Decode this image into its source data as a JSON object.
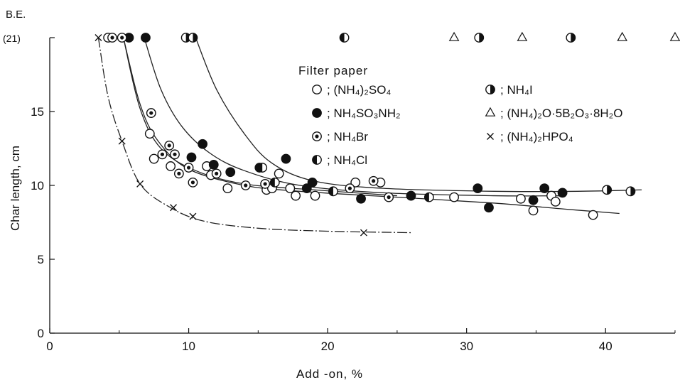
{
  "chart_data": {
    "type": "scatter",
    "xlabel": "Add -on,  %",
    "ylabel": "Char length, cm",
    "xlim": [
      0,
      45
    ],
    "ylim": [
      0,
      20
    ],
    "x_ticks": [
      0,
      10,
      20,
      30,
      40
    ],
    "y_ticks": [
      0,
      5,
      10,
      15
    ],
    "top_label_1": "B.E.",
    "top_label_2": "(21)",
    "top_value": 20,
    "grid": false,
    "legend": {
      "title": "Filter paper",
      "position": "top-right (inside plot)"
    },
    "series": [
      {
        "name": "(NH₄)₂SO₄",
        "marker": "open-circle",
        "points": [
          [
            4.2,
            20
          ],
          [
            7.2,
            13.5
          ],
          [
            7.5,
            11.8
          ],
          [
            8.7,
            11.3
          ],
          [
            11.3,
            11.3
          ],
          [
            11.6,
            10.7
          ],
          [
            12.8,
            9.8
          ],
          [
            15.6,
            9.7
          ],
          [
            16.0,
            9.8
          ],
          [
            16.5,
            10.8
          ],
          [
            17.3,
            9.8
          ],
          [
            17.7,
            9.3
          ],
          [
            19.1,
            9.3
          ],
          [
            22.0,
            10.2
          ],
          [
            23.8,
            10.2
          ],
          [
            29.1,
            9.2
          ],
          [
            33.9,
            9.1
          ],
          [
            34.8,
            8.3
          ],
          [
            36.1,
            9.3
          ],
          [
            36.4,
            8.9
          ],
          [
            39.1,
            8.0
          ]
        ],
        "curve": [
          [
            5.3,
            20
          ],
          [
            6.5,
            15.5
          ],
          [
            7.8,
            13.0
          ],
          [
            10,
            11.1
          ],
          [
            14,
            10.0
          ],
          [
            18,
            9.6
          ],
          [
            25,
            9.2
          ],
          [
            32,
            8.8
          ],
          [
            37,
            8.4
          ],
          [
            41,
            8.1
          ]
        ]
      },
      {
        "name": "NH₄SO₃NH₂",
        "marker": "filled-circle",
        "points": [
          [
            5.7,
            20
          ],
          [
            6.9,
            20
          ],
          [
            10.2,
            11.9
          ],
          [
            11.0,
            12.8
          ],
          [
            11.8,
            11.4
          ],
          [
            13.0,
            10.9
          ],
          [
            15.1,
            11.2
          ],
          [
            17.0,
            11.8
          ],
          [
            18.5,
            9.8
          ],
          [
            18.9,
            10.2
          ],
          [
            22.4,
            9.1
          ],
          [
            26.0,
            9.3
          ],
          [
            30.8,
            9.8
          ],
          [
            31.6,
            8.5
          ],
          [
            34.8,
            9.0
          ],
          [
            35.6,
            9.8
          ],
          [
            36.9,
            9.5
          ]
        ],
        "curve": [
          [
            6.8,
            20
          ],
          [
            8.0,
            16.5
          ],
          [
            9.5,
            14.0
          ],
          [
            11.5,
            12.2
          ],
          [
            14,
            11.0
          ],
          [
            18,
            10.0
          ],
          [
            24,
            9.5
          ],
          [
            32,
            9.3
          ],
          [
            37,
            9.3
          ]
        ]
      },
      {
        "name": "NH₄Br",
        "marker": "dotted-circle",
        "points": [
          [
            4.5,
            20
          ],
          [
            5.2,
            20
          ],
          [
            7.3,
            14.9
          ],
          [
            8.1,
            12.1
          ],
          [
            8.6,
            12.7
          ],
          [
            9.0,
            12.1
          ],
          [
            9.3,
            10.8
          ],
          [
            10.0,
            11.2
          ],
          [
            10.3,
            10.2
          ],
          [
            12.0,
            10.8
          ],
          [
            14.1,
            10.0
          ],
          [
            15.5,
            10.1
          ],
          [
            21.6,
            9.8
          ],
          [
            23.3,
            10.3
          ],
          [
            24.4,
            9.2
          ]
        ],
        "curve": [
          [
            5.3,
            20
          ],
          [
            6.5,
            15.2
          ],
          [
            8,
            12.5
          ],
          [
            10.5,
            11.0
          ],
          [
            14,
            10.1
          ],
          [
            19,
            9.7
          ],
          [
            25,
            9.3
          ]
        ]
      },
      {
        "name": "NH₄Cl",
        "marker": "left-half-circle",
        "points": [
          [
            21.2,
            20
          ],
          [
            15.3,
            11.2
          ],
          [
            16.2,
            10.2
          ],
          [
            20.4,
            9.6
          ],
          [
            27.3,
            9.2
          ]
        ],
        "curve": []
      },
      {
        "name": "NH₄I",
        "marker": "right-half-circle",
        "points": [
          [
            9.8,
            20
          ],
          [
            10.3,
            20
          ],
          [
            30.9,
            20
          ],
          [
            37.5,
            20
          ],
          [
            40.1,
            9.7
          ],
          [
            41.8,
            9.6
          ]
        ],
        "curve": [
          [
            10.5,
            20
          ],
          [
            12,
            16.5
          ],
          [
            14,
            13.5
          ],
          [
            16,
            11.5
          ],
          [
            19,
            10.3
          ],
          [
            24,
            9.8
          ],
          [
            32,
            9.6
          ],
          [
            38,
            9.6
          ],
          [
            42.6,
            9.7
          ]
        ]
      },
      {
        "name": "(NH₄)₂O·5B₂O₃·8H₂O",
        "marker": "open-triangle",
        "points": [
          [
            29.1,
            20
          ],
          [
            34.0,
            20
          ],
          [
            41.2,
            20
          ],
          [
            45.0,
            20
          ]
        ],
        "curve": []
      },
      {
        "name": "(NH₄)₂HPO₄",
        "marker": "cross",
        "points": [
          [
            3.5,
            20
          ],
          [
            5.2,
            13.0
          ],
          [
            6.5,
            10.1
          ],
          [
            8.9,
            8.5
          ],
          [
            10.3,
            7.9
          ],
          [
            22.6,
            6.8
          ]
        ],
        "curve": [
          [
            3.5,
            20
          ],
          [
            4.2,
            16.0
          ],
          [
            5.2,
            13.0
          ],
          [
            6.5,
            10.1
          ],
          [
            8.5,
            8.6
          ],
          [
            11,
            7.6
          ],
          [
            15,
            7.1
          ],
          [
            20,
            6.9
          ],
          [
            26,
            6.8
          ]
        ]
      }
    ]
  }
}
